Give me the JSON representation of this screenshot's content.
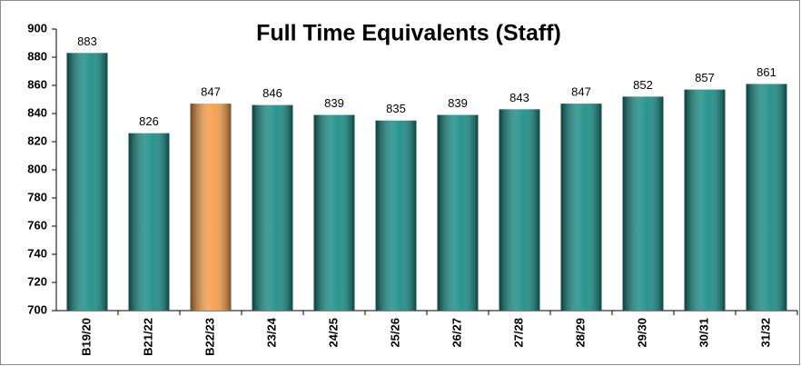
{
  "chart_data": {
    "type": "bar",
    "title": "Full Time Equivalents (Staff)",
    "categories": [
      "B19/20",
      "B21/22",
      "B22/23",
      "23/24",
      "24/25",
      "25/26",
      "26/27",
      "27/28",
      "28/29",
      "29/30",
      "30/31",
      "31/32"
    ],
    "values": [
      883,
      826,
      847,
      846,
      839,
      835,
      839,
      843,
      847,
      852,
      857,
      861
    ],
    "colors": [
      "#148a83",
      "#148a83",
      "#f39a44",
      "#148a83",
      "#148a83",
      "#148a83",
      "#148a83",
      "#148a83",
      "#148a83",
      "#148a83",
      "#148a83",
      "#148a83"
    ],
    "ylim": [
      700,
      900
    ],
    "yticks": [
      700,
      720,
      740,
      760,
      780,
      800,
      820,
      840,
      860,
      880,
      900
    ],
    "grid": false
  }
}
